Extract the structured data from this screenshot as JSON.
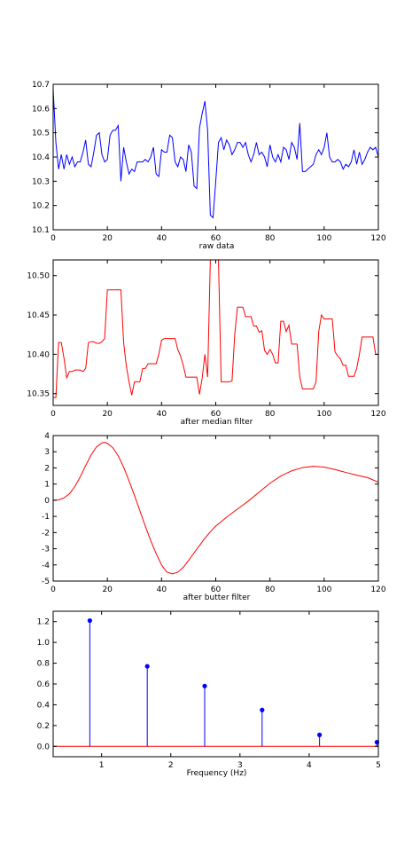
{
  "chart_data": [
    {
      "type": "line",
      "xlabel": "raw data",
      "xlim": [
        0,
        120
      ],
      "ylim": [
        10.1,
        10.7
      ],
      "xticks": [
        0,
        20,
        40,
        60,
        80,
        100,
        120
      ],
      "yticks": [
        10.1,
        10.2,
        10.3,
        10.4,
        10.5,
        10.6,
        10.7
      ],
      "series": [
        {
          "color": "#0000ff",
          "x": [
            0,
            1,
            2,
            3,
            4,
            5,
            6,
            7,
            8,
            9,
            10,
            11,
            12,
            13,
            14,
            15,
            16,
            17,
            18,
            19,
            20,
            21,
            22,
            23,
            24,
            25,
            26,
            27,
            28,
            29,
            30,
            31,
            32,
            33,
            34,
            35,
            36,
            37,
            38,
            39,
            40,
            41,
            42,
            43,
            44,
            45,
            46,
            47,
            48,
            49,
            50,
            51,
            52,
            53,
            54,
            55,
            56,
            57,
            58,
            59,
            60,
            61,
            62,
            63,
            64,
            65,
            66,
            67,
            68,
            69,
            70,
            71,
            72,
            73,
            74,
            75,
            76,
            77,
            78,
            79,
            80,
            81,
            82,
            83,
            84,
            85,
            86,
            87,
            88,
            89,
            90,
            91,
            92,
            93,
            94,
            95,
            96,
            97,
            98,
            99,
            100,
            101,
            102,
            103,
            104,
            105,
            106,
            107,
            108,
            109,
            110,
            111,
            112,
            113,
            114,
            115,
            116,
            117,
            118,
            119,
            120
          ],
          "y": [
            10.68,
            10.46,
            10.35,
            10.41,
            10.35,
            10.41,
            10.37,
            10.4,
            10.36,
            10.38,
            10.38,
            10.42,
            10.47,
            10.37,
            10.36,
            10.42,
            10.49,
            10.5,
            10.41,
            10.38,
            10.39,
            10.49,
            10.51,
            10.51,
            10.53,
            10.3,
            10.44,
            10.38,
            10.33,
            10.35,
            10.34,
            10.38,
            10.38,
            10.38,
            10.39,
            10.38,
            10.4,
            10.44,
            10.33,
            10.32,
            10.43,
            10.42,
            10.42,
            10.49,
            10.48,
            10.38,
            10.36,
            10.4,
            10.39,
            10.34,
            10.45,
            10.42,
            10.28,
            10.27,
            10.52,
            10.58,
            10.63,
            10.51,
            10.16,
            10.15,
            10.3,
            10.46,
            10.48,
            10.43,
            10.47,
            10.45,
            10.41,
            10.43,
            10.46,
            10.46,
            10.44,
            10.46,
            10.41,
            10.38,
            10.41,
            10.46,
            10.41,
            10.42,
            10.4,
            10.36,
            10.45,
            10.4,
            10.38,
            10.41,
            10.38,
            10.44,
            10.43,
            10.39,
            10.46,
            10.44,
            10.39,
            10.54,
            10.34,
            10.34,
            10.35,
            10.36,
            10.37,
            10.41,
            10.43,
            10.41,
            10.44,
            10.5,
            10.4,
            10.38,
            10.38,
            10.39,
            10.38,
            10.35,
            10.37,
            10.36,
            10.38,
            10.43,
            10.37,
            10.42,
            10.37,
            10.39,
            10.42,
            10.44,
            10.43,
            10.44,
            10.4
          ]
        }
      ]
    },
    {
      "type": "line",
      "xlabel": "after median filter",
      "xlim": [
        0,
        120
      ],
      "ylim": [
        10.335,
        10.52
      ],
      "xticks": [
        0,
        20,
        40,
        60,
        80,
        100,
        120
      ],
      "yticks": [
        10.35,
        10.4,
        10.45,
        10.5
      ],
      "ytick_labels": [
        "10.35",
        "10.40",
        "10.45",
        "10.50"
      ],
      "series": [
        {
          "color": "#ff0000",
          "x": [
            0,
            1,
            2,
            3,
            4,
            5,
            6,
            7,
            8,
            9,
            10,
            11,
            12,
            13,
            14,
            15,
            16,
            17,
            18,
            19,
            20,
            21,
            22,
            23,
            24,
            25,
            26,
            27,
            28,
            29,
            30,
            31,
            32,
            33,
            34,
            35,
            36,
            37,
            38,
            39,
            40,
            41,
            42,
            43,
            44,
            45,
            46,
            47,
            48,
            49,
            50,
            51,
            52,
            53,
            54,
            55,
            56,
            57,
            58,
            59,
            60,
            61,
            62,
            63,
            64,
            65,
            66,
            67,
            68,
            69,
            70,
            71,
            72,
            73,
            74,
            75,
            76,
            77,
            78,
            79,
            80,
            81,
            82,
            83,
            84,
            85,
            86,
            87,
            88,
            89,
            90,
            91,
            92,
            93,
            94,
            95,
            96,
            97,
            98,
            99,
            100,
            101,
            102,
            103,
            104,
            105,
            106,
            107,
            108,
            109,
            110,
            111,
            112,
            113,
            114,
            115,
            116,
            117,
            118,
            119,
            120
          ],
          "y": [
            10.345,
            10.345,
            10.415,
            10.415,
            10.395,
            10.37,
            10.378,
            10.378,
            10.38,
            10.38,
            10.38,
            10.378,
            10.382,
            10.415,
            10.416,
            10.416,
            10.414,
            10.414,
            10.416,
            10.42,
            10.482,
            10.482,
            10.482,
            10.482,
            10.482,
            10.482,
            10.415,
            10.385,
            10.365,
            10.348,
            10.365,
            10.365,
            10.365,
            10.382,
            10.382,
            10.388,
            10.388,
            10.388,
            10.388,
            10.4,
            10.418,
            10.42,
            10.42,
            10.42,
            10.42,
            10.42,
            10.406,
            10.398,
            10.386,
            10.371,
            10.371,
            10.371,
            10.371,
            10.371,
            10.349,
            10.37,
            10.4,
            10.371,
            10.52,
            10.52,
            10.52,
            10.52,
            10.365,
            10.365,
            10.365,
            10.365,
            10.366,
            10.425,
            10.46,
            10.46,
            10.46,
            10.448,
            10.448,
            10.448,
            10.436,
            10.436,
            10.428,
            10.43,
            10.405,
            10.4,
            10.406,
            10.4,
            10.389,
            10.389,
            10.442,
            10.442,
            10.429,
            10.437,
            10.413,
            10.413,
            10.413,
            10.371,
            10.356,
            10.356,
            10.356,
            10.356,
            10.356,
            10.365,
            10.429,
            10.45,
            10.445,
            10.445,
            10.445,
            10.445,
            10.403,
            10.398,
            10.394,
            10.386,
            10.386,
            10.372,
            10.372,
            10.372,
            10.382,
            10.4,
            10.422,
            10.422,
            10.422,
            10.422,
            10.422,
            10.4,
            10.4
          ]
        }
      ]
    },
    {
      "type": "line",
      "xlabel": "after butter filter",
      "xlim": [
        0,
        120
      ],
      "ylim": [
        -5,
        4
      ],
      "xticks": [
        0,
        20,
        40,
        60,
        80,
        100,
        120
      ],
      "yticks": [
        -5,
        -4,
        -3,
        -2,
        -1,
        0,
        1,
        2,
        3,
        4
      ],
      "series": [
        {
          "color": "#ff0000",
          "x": [
            0,
            2,
            4,
            6,
            8,
            10,
            12,
            14,
            16,
            18,
            19,
            20,
            22,
            24,
            26,
            28,
            30,
            32,
            34,
            36,
            38,
            40,
            41,
            42,
            44,
            46,
            48,
            50,
            52,
            54,
            56,
            58,
            60,
            64,
            68,
            72,
            76,
            80,
            84,
            88,
            92,
            96,
            100,
            104,
            108,
            112,
            116,
            120
          ],
          "y": [
            0,
            0.02,
            0.15,
            0.4,
            0.85,
            1.45,
            2.15,
            2.8,
            3.3,
            3.55,
            3.58,
            3.52,
            3.25,
            2.75,
            2.05,
            1.2,
            0.3,
            -0.65,
            -1.6,
            -2.5,
            -3.3,
            -4.0,
            -4.25,
            -4.45,
            -4.55,
            -4.45,
            -4.15,
            -3.72,
            -3.25,
            -2.8,
            -2.35,
            -1.95,
            -1.6,
            -1.05,
            -0.55,
            -0.05,
            0.5,
            1.05,
            1.5,
            1.82,
            2.02,
            2.1,
            2.05,
            1.9,
            1.72,
            1.55,
            1.4,
            1.12
          ]
        }
      ]
    },
    {
      "type": "stem",
      "xlabel": "Frequency (Hz)",
      "xlim": [
        0.3,
        5.0
      ],
      "ylim": [
        -0.1,
        1.3
      ],
      "xticks": [
        1,
        2,
        3,
        4,
        5
      ],
      "yticks": [
        0.0,
        0.2,
        0.4,
        0.6,
        0.8,
        1.0,
        1.2
      ],
      "ytick_labels": [
        "0.0",
        "0.2",
        "0.4",
        "0.6",
        "0.8",
        "1.0",
        "1.2"
      ],
      "baseline_color": "#ff0000",
      "stem_color": "#0000ff",
      "x": [
        0.83,
        1.66,
        2.49,
        3.32,
        4.15,
        4.98
      ],
      "values": [
        1.21,
        0.77,
        0.58,
        0.35,
        0.11,
        0.04
      ]
    }
  ]
}
